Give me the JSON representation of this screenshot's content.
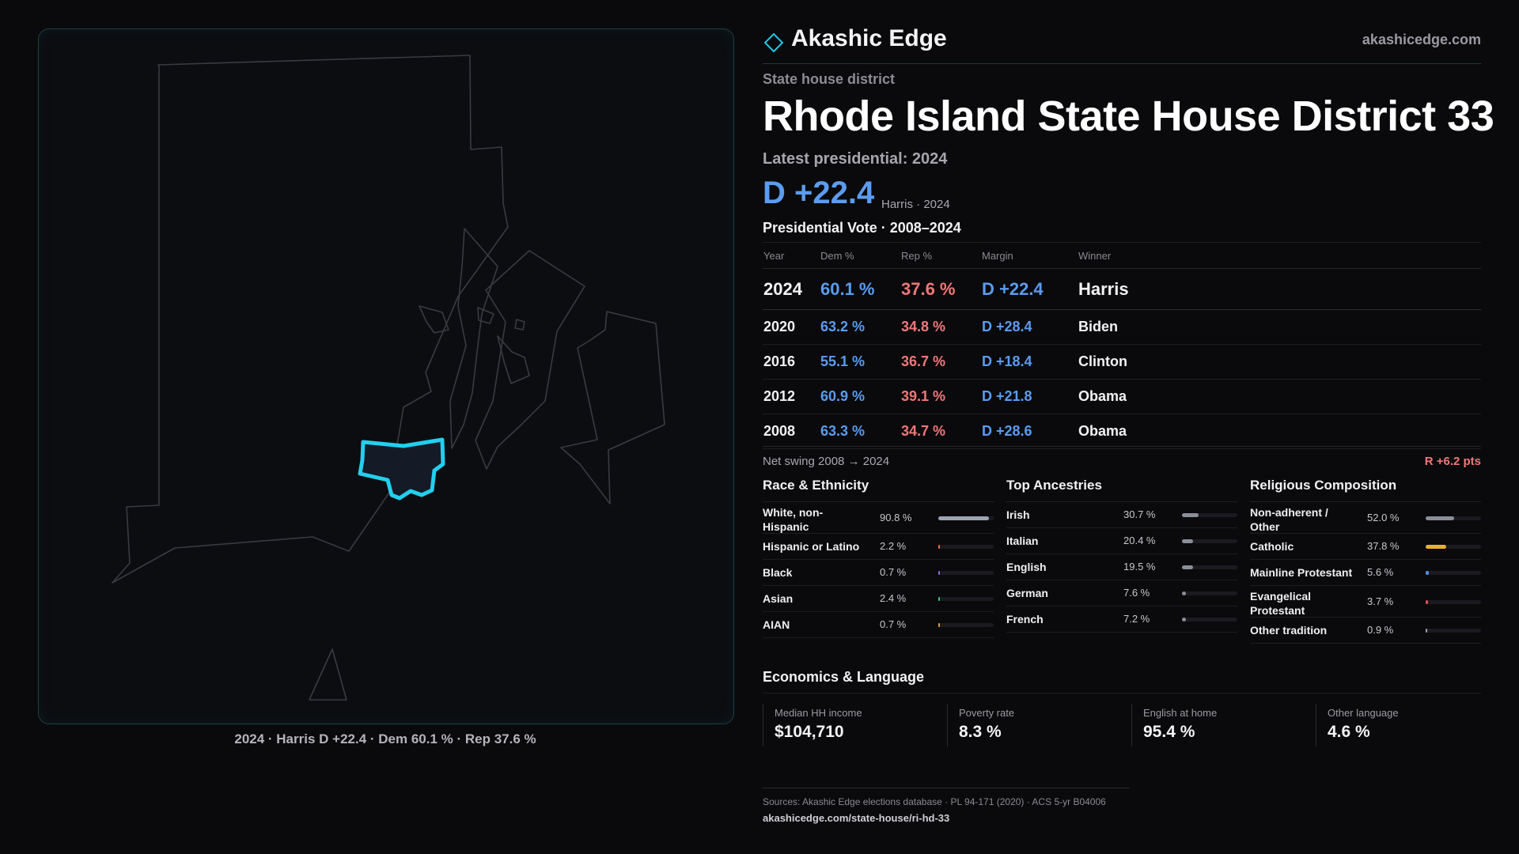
{
  "brand": {
    "name": "Akashic Edge",
    "url": "akashicedge.com",
    "accent": "#1fc8e8"
  },
  "header": {
    "eyebrow": "State house district",
    "title": "Rhode Island State House District 33",
    "latest_label": "Latest presidential: 2024",
    "margin": "D +22.4",
    "margin_sub": "Harris · 2024"
  },
  "map": {
    "caption": "2024 · Harris D +22.4 · Dem 60.1 % · Rep 37.6 %"
  },
  "votes": {
    "title": "Presidential Vote · 2008–2024",
    "headers": {
      "year": "Year",
      "dem": "Dem %",
      "rep": "Rep %",
      "margin": "Margin",
      "winner": "Winner"
    },
    "rows": [
      {
        "year": "2024",
        "dem": "60.1 %",
        "rep": "37.6 %",
        "margin": "D +22.4",
        "winner": "Harris"
      },
      {
        "year": "2020",
        "dem": "63.2 %",
        "rep": "34.8 %",
        "margin": "D +28.4",
        "winner": "Biden"
      },
      {
        "year": "2016",
        "dem": "55.1 %",
        "rep": "36.7 %",
        "margin": "D +18.4",
        "winner": "Clinton"
      },
      {
        "year": "2012",
        "dem": "60.9 %",
        "rep": "39.1 %",
        "margin": "D +21.8",
        "winner": "Obama"
      },
      {
        "year": "2008",
        "dem": "63.3 %",
        "rep": "34.7 %",
        "margin": "D +28.6",
        "winner": "Obama"
      }
    ],
    "swing_label": "Net swing 2008 → 2024",
    "swing_value": "R +6.2 pts"
  },
  "race": {
    "title": "Race & Ethnicity",
    "rows": [
      {
        "label": "White, non-Hispanic",
        "pct": "90.8 %",
        "value": 0.908,
        "color": "#9aa4b4"
      },
      {
        "label": "Hispanic or Latino",
        "pct": "2.2 %",
        "value": 0.022,
        "color": "#e07040"
      },
      {
        "label": "Black",
        "pct": "0.7 %",
        "value": 0.007,
        "color": "#8a6ad0"
      },
      {
        "label": "Asian",
        "pct": "2.4 %",
        "value": 0.024,
        "color": "#40c080"
      },
      {
        "label": "AIAN",
        "pct": "0.7 %",
        "value": 0.007,
        "color": "#e0a040"
      }
    ]
  },
  "ancestry": {
    "title": "Top Ancestries",
    "rows": [
      {
        "label": "Irish",
        "pct": "30.7 %",
        "value": 0.307,
        "color": "#8a8e98"
      },
      {
        "label": "Italian",
        "pct": "20.4 %",
        "value": 0.204,
        "color": "#8a8e98"
      },
      {
        "label": "English",
        "pct": "19.5 %",
        "value": 0.195,
        "color": "#8a8e98"
      },
      {
        "label": "German",
        "pct": "7.6 %",
        "value": 0.076,
        "color": "#8a8e98"
      },
      {
        "label": "French",
        "pct": "7.2 %",
        "value": 0.072,
        "color": "#8a8e98"
      }
    ]
  },
  "religion": {
    "title": "Religious Composition",
    "rows": [
      {
        "label": "Non-adherent / Other",
        "pct": "52.0 %",
        "value": 0.52,
        "color": "#8a8e98"
      },
      {
        "label": "Catholic",
        "pct": "37.8 %",
        "value": 0.378,
        "color": "#e8b030"
      },
      {
        "label": "Mainline Protestant",
        "pct": "5.6 %",
        "value": 0.056,
        "color": "#4a90e8"
      },
      {
        "label": "Evangelical Protestant",
        "pct": "3.7 %",
        "value": 0.037,
        "color": "#e05050"
      },
      {
        "label": "Other tradition",
        "pct": "0.9 %",
        "value": 0.009,
        "color": "#a0a0a8"
      }
    ]
  },
  "economics": {
    "title": "Economics & Language",
    "items": [
      {
        "label": "Median HH income",
        "value": "$104,710"
      },
      {
        "label": "Poverty rate",
        "value": "8.3 %"
      },
      {
        "label": "English at home",
        "value": "95.4 %"
      },
      {
        "label": "Other language",
        "value": "4.6 %"
      }
    ]
  },
  "footer": {
    "sources": "Sources: Akashic Edge elections database · PL 94-171 (2020) · ACS 5-yr B04006",
    "url": "akashicedge.com/state-house/ri-hd-33"
  }
}
